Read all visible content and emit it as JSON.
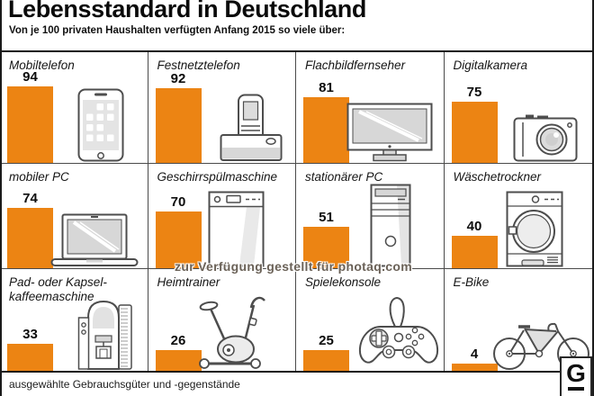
{
  "title": "Lebensstandard in Deutschland",
  "subtitle": "Von je 100 privaten Haushalten verfügten Anfang 2015 so viele über:",
  "watermark": "zur Verfügung gestellt für photaq.com",
  "footer_note": "ausgewählte Gebrauchsgüter und -gegenstände",
  "logo": {
    "letter": "G"
  },
  "colors": {
    "bar": "#EC8413",
    "icon_stroke": "#4d4d4d",
    "icon_fill_light": "#e4e4e4",
    "frame": "#1a1a1a"
  },
  "chart_data": {
    "type": "bar",
    "title": "Lebensstandard in Deutschland",
    "subtitle": "Von je 100 privaten Haushalten verfügten Anfang 2015 so viele über:",
    "unit": "von je 100 privaten Haushalten",
    "layout": "4x3 grid of pictorial bars, bottom-aligned, value label above each bar, device icon right of bar",
    "ylim": [
      0,
      100
    ],
    "categories": [
      "Mobiltelefon",
      "Festnetztelefon",
      "Flachbildfernseher",
      "Digitalkamera",
      "mobiler PC",
      "Geschirrspülmaschine",
      "stationärer PC",
      "Wäschetrockner",
      "Pad- oder Kapsel-kaffeemaschine",
      "Heimtrainer",
      "Spielekonsole",
      "E-Bike"
    ],
    "values": [
      94,
      92,
      81,
      75,
      74,
      70,
      51,
      40,
      33,
      26,
      25,
      4
    ],
    "items": [
      {
        "label": "Mobiltelefon",
        "value": 94,
        "icon": "smartphone-icon"
      },
      {
        "label": "Festnetztelefon",
        "value": 92,
        "icon": "cordless-phone-icon"
      },
      {
        "label": "Flachbildfernseher",
        "value": 81,
        "icon": "flatscreen-tv-icon"
      },
      {
        "label": "Digitalkamera",
        "value": 75,
        "icon": "camera-icon"
      },
      {
        "label": "mobiler PC",
        "value": 74,
        "icon": "laptop-icon"
      },
      {
        "label": "Geschirrspülmaschine",
        "value": 70,
        "icon": "dishwasher-icon"
      },
      {
        "label": "stationärer PC",
        "value": 51,
        "icon": "tower-pc-icon"
      },
      {
        "label": "Wäschetrockner",
        "value": 40,
        "icon": "dryer-icon"
      },
      {
        "label": "Pad- oder Kapsel-kaffeemaschine",
        "value": 33,
        "icon": "coffee-machine-icon"
      },
      {
        "label": "Heimtrainer",
        "value": 26,
        "icon": "exercise-bike-icon"
      },
      {
        "label": "Spielekonsole",
        "value": 25,
        "icon": "game-controller-icon"
      },
      {
        "label": "E-Bike",
        "value": 4,
        "icon": "bicycle-icon"
      }
    ]
  }
}
